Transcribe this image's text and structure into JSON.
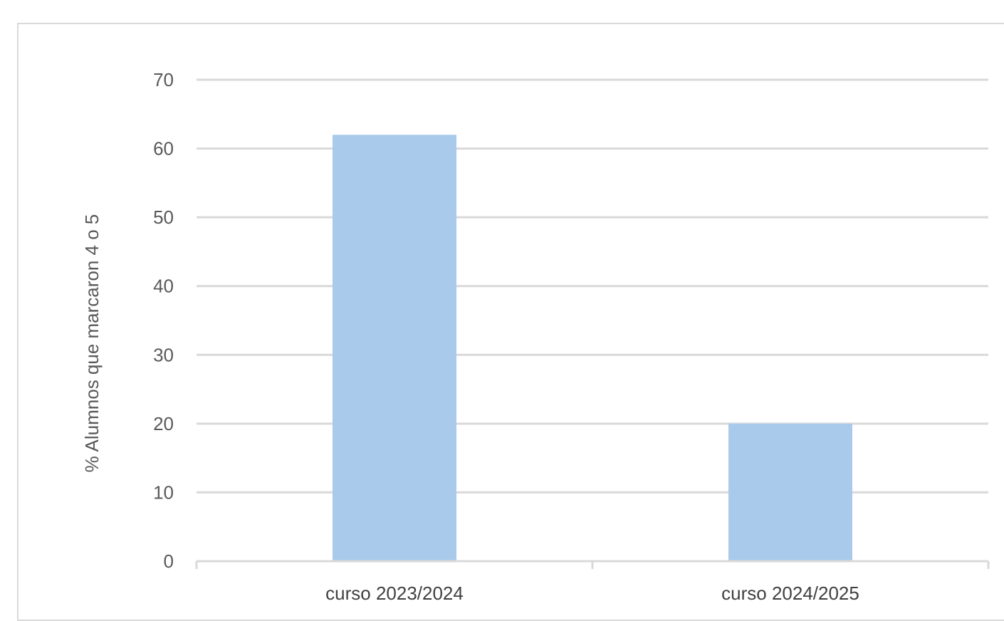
{
  "chart_data": {
    "type": "bar",
    "categories": [
      "curso 2023/2024",
      "curso 2024/2025"
    ],
    "values": [
      62,
      20
    ],
    "title": "",
    "xlabel": "",
    "ylabel": "% Alumnos que marcaron 4 o 5",
    "ylim": [
      0,
      70
    ],
    "yticks": [
      0,
      10,
      20,
      30,
      40,
      50,
      60,
      70
    ],
    "grid": true,
    "bar_color": "#a9caeb",
    "grid_color": "#d9d9d9"
  }
}
